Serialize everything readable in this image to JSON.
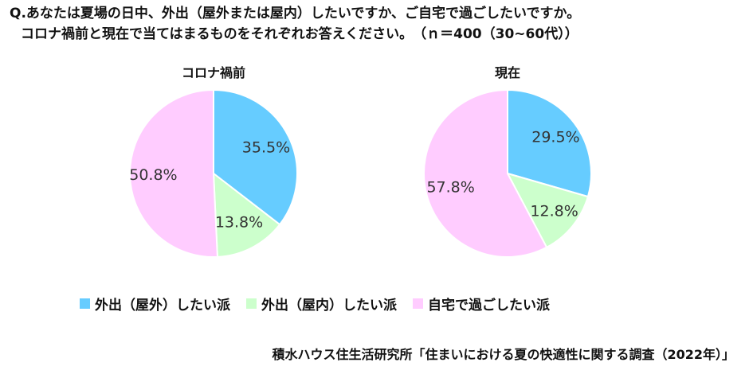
{
  "question": {
    "line1": "Q.あなたは夏場の日中、外出（屋外または屋内）したいですか、ご自宅で過ごしたいですか。",
    "line2": "コロナ禍前と現在で当てはまるものをそれぞれお答えください。　（ｎ＝400（30~60代））"
  },
  "source": "積水ハウス住生活研究所「住まいにおける夏の快適性に関する調査（2022年）」",
  "chart_data": [
    {
      "type": "pie",
      "title": "コロナ禍前",
      "categories": [
        "外出（屋外）したい派",
        "外出（屋内）したい派",
        "自宅で過ごしたい派"
      ],
      "values": [
        35.5,
        13.8,
        50.8
      ],
      "labels": [
        "35.5%",
        "13.8%",
        "50.8%"
      ],
      "colors": [
        "#66ccff",
        "#ccffcc",
        "#ffccff"
      ],
      "start": "12 o'clock, clockwise"
    },
    {
      "type": "pie",
      "title": "現在",
      "categories": [
        "外出（屋外）したい派",
        "外出（屋内）したい派",
        "自宅で過ごしたい派"
      ],
      "values": [
        29.5,
        12.8,
        57.8
      ],
      "labels": [
        "29.5%",
        "12.8%",
        "57.8%"
      ],
      "colors": [
        "#66ccff",
        "#ccffcc",
        "#ffccff"
      ],
      "start": "12 o'clock, clockwise"
    }
  ],
  "legend": {
    "placement": "bottom",
    "items": [
      {
        "label": "外出（屋外）したい派",
        "color": "#66ccff"
      },
      {
        "label": "外出（屋内）したい派",
        "color": "#ccffcc"
      },
      {
        "label": "自宅で過ごしたい派",
        "color": "#ffccff"
      }
    ]
  }
}
